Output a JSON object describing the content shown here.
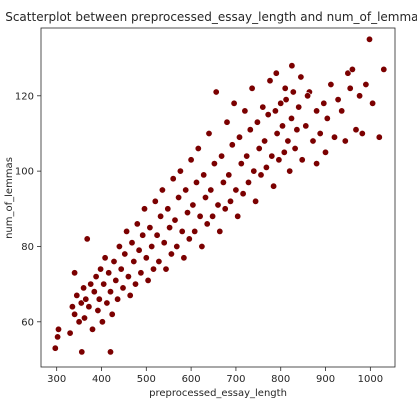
{
  "chart_data": {
    "type": "scatter",
    "title": "Scatterplot between preprocessed_essay_length and num_of_lemmas",
    "xlabel": "preprocessed_essay_length",
    "ylabel": "num_of_lemmas",
    "xlim": [
      265,
      1055
    ],
    "ylim": [
      48,
      138
    ],
    "xticks": [
      300,
      400,
      500,
      600,
      700,
      800,
      900,
      1000
    ],
    "yticks": [
      60,
      80,
      100,
      120
    ],
    "grid": false,
    "legend": "none",
    "marker_color": "#7b0000",
    "marker_edge_color": "#ffffff",
    "points": [
      [
        297,
        53
      ],
      [
        302,
        56
      ],
      [
        304,
        58
      ],
      [
        340,
        73
      ],
      [
        356,
        52
      ],
      [
        368,
        82
      ],
      [
        420,
        52
      ],
      [
        330,
        57
      ],
      [
        335,
        64
      ],
      [
        340,
        62
      ],
      [
        345,
        67
      ],
      [
        350,
        60
      ],
      [
        355,
        65
      ],
      [
        360,
        69
      ],
      [
        362,
        61
      ],
      [
        365,
        66
      ],
      [
        372,
        64
      ],
      [
        376,
        70
      ],
      [
        380,
        58
      ],
      [
        384,
        68
      ],
      [
        388,
        72
      ],
      [
        392,
        63
      ],
      [
        395,
        66
      ],
      [
        398,
        74
      ],
      [
        402,
        60
      ],
      [
        405,
        70
      ],
      [
        408,
        77
      ],
      [
        412,
        65
      ],
      [
        416,
        73
      ],
      [
        420,
        68
      ],
      [
        424,
        62
      ],
      [
        428,
        76
      ],
      [
        432,
        71
      ],
      [
        436,
        66
      ],
      [
        440,
        80
      ],
      [
        444,
        74
      ],
      [
        448,
        69
      ],
      [
        452,
        78
      ],
      [
        456,
        84
      ],
      [
        460,
        72
      ],
      [
        464,
        67
      ],
      [
        468,
        81
      ],
      [
        472,
        76
      ],
      [
        476,
        70
      ],
      [
        480,
        86
      ],
      [
        484,
        79
      ],
      [
        488,
        73
      ],
      [
        492,
        83
      ],
      [
        496,
        90
      ],
      [
        500,
        77
      ],
      [
        504,
        71
      ],
      [
        508,
        85
      ],
      [
        512,
        80
      ],
      [
        516,
        74
      ],
      [
        520,
        92
      ],
      [
        524,
        83
      ],
      [
        528,
        76
      ],
      [
        532,
        88
      ],
      [
        536,
        95
      ],
      [
        540,
        81
      ],
      [
        544,
        74
      ],
      [
        548,
        90
      ],
      [
        552,
        85
      ],
      [
        556,
        78
      ],
      [
        560,
        98
      ],
      [
        564,
        87
      ],
      [
        568,
        80
      ],
      [
        572,
        93
      ],
      [
        576,
        100
      ],
      [
        580,
        84
      ],
      [
        584,
        77
      ],
      [
        588,
        95
      ],
      [
        592,
        89
      ],
      [
        596,
        82
      ],
      [
        600,
        103
      ],
      [
        604,
        91
      ],
      [
        608,
        84
      ],
      [
        612,
        97
      ],
      [
        616,
        106
      ],
      [
        620,
        88
      ],
      [
        624,
        80
      ],
      [
        628,
        99
      ],
      [
        632,
        93
      ],
      [
        636,
        86
      ],
      [
        640,
        110
      ],
      [
        644,
        95
      ],
      [
        648,
        88
      ],
      [
        652,
        102
      ],
      [
        656,
        121
      ],
      [
        660,
        91
      ],
      [
        664,
        84
      ],
      [
        668,
        104
      ],
      [
        672,
        97
      ],
      [
        676,
        90
      ],
      [
        680,
        113
      ],
      [
        684,
        99
      ],
      [
        688,
        92
      ],
      [
        692,
        107
      ],
      [
        696,
        118
      ],
      [
        700,
        95
      ],
      [
        704,
        88
      ],
      [
        708,
        109
      ],
      [
        712,
        102
      ],
      [
        716,
        94
      ],
      [
        720,
        116
      ],
      [
        724,
        104
      ],
      [
        728,
        97
      ],
      [
        732,
        111
      ],
      [
        736,
        122
      ],
      [
        740,
        100
      ],
      [
        744,
        92
      ],
      [
        748,
        113
      ],
      [
        752,
        106
      ],
      [
        756,
        99
      ],
      [
        760,
        117
      ],
      [
        764,
        108
      ],
      [
        768,
        101
      ],
      [
        772,
        115
      ],
      [
        776,
        124
      ],
      [
        780,
        104
      ],
      [
        784,
        96
      ],
      [
        788,
        116
      ],
      [
        792,
        110
      ],
      [
        796,
        103
      ],
      [
        800,
        118
      ],
      [
        804,
        112
      ],
      [
        808,
        105
      ],
      [
        812,
        119
      ],
      [
        816,
        108
      ],
      [
        820,
        100
      ],
      [
        824,
        114
      ],
      [
        828,
        121
      ],
      [
        832,
        106
      ],
      [
        836,
        111
      ],
      [
        840,
        117
      ],
      [
        848,
        103
      ],
      [
        856,
        112
      ],
      [
        864,
        121
      ],
      [
        872,
        108
      ],
      [
        880,
        116
      ],
      [
        888,
        110
      ],
      [
        896,
        118
      ],
      [
        904,
        114
      ],
      [
        912,
        123
      ],
      [
        920,
        109
      ],
      [
        928,
        119
      ],
      [
        936,
        116
      ],
      [
        944,
        108
      ],
      [
        950,
        126
      ],
      [
        955,
        122
      ],
      [
        960,
        127
      ],
      [
        968,
        111
      ],
      [
        976,
        120
      ],
      [
        982,
        110
      ],
      [
        990,
        123
      ],
      [
        998,
        135
      ],
      [
        1005,
        118
      ],
      [
        1020,
        109
      ],
      [
        1030,
        127
      ],
      [
        900,
        105
      ],
      [
        880,
        102
      ],
      [
        860,
        120
      ],
      [
        845,
        125
      ],
      [
        825,
        128
      ],
      [
        810,
        122
      ],
      [
        790,
        126
      ]
    ]
  }
}
